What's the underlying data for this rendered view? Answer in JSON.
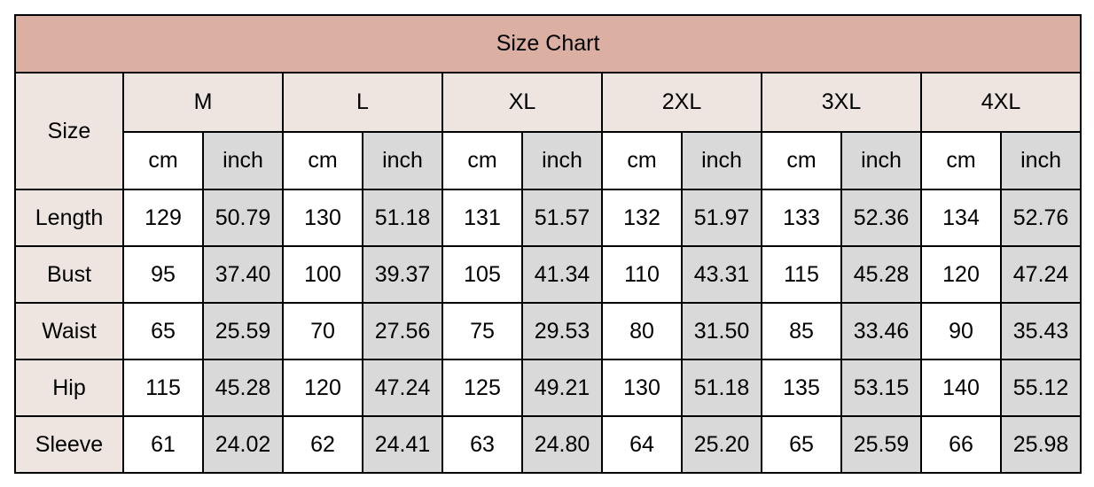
{
  "title": "Size Chart",
  "size_label": "Size",
  "unit_labels": {
    "cm": "cm",
    "inch": "inch"
  },
  "sizes": [
    "M",
    "L",
    "XL",
    "2XL",
    "3XL",
    "4XL"
  ],
  "colors": {
    "title_bg": "#dbb0a3",
    "header_bg": "#efe5e0",
    "inch_bg": "#d9d9d9",
    "border": "#000000"
  },
  "rows": [
    {
      "label": "Length",
      "values": [
        [
          "129",
          "50.79"
        ],
        [
          "130",
          "51.18"
        ],
        [
          "131",
          "51.57"
        ],
        [
          "132",
          "51.97"
        ],
        [
          "133",
          "52.36"
        ],
        [
          "134",
          "52.76"
        ]
      ]
    },
    {
      "label": "Bust",
      "values": [
        [
          "95",
          "37.40"
        ],
        [
          "100",
          "39.37"
        ],
        [
          "105",
          "41.34"
        ],
        [
          "110",
          "43.31"
        ],
        [
          "115",
          "45.28"
        ],
        [
          "120",
          "47.24"
        ]
      ]
    },
    {
      "label": "Waist",
      "values": [
        [
          "65",
          "25.59"
        ],
        [
          "70",
          "27.56"
        ],
        [
          "75",
          "29.53"
        ],
        [
          "80",
          "31.50"
        ],
        [
          "85",
          "33.46"
        ],
        [
          "90",
          "35.43"
        ]
      ]
    },
    {
      "label": "Hip",
      "values": [
        [
          "115",
          "45.28"
        ],
        [
          "120",
          "47.24"
        ],
        [
          "125",
          "49.21"
        ],
        [
          "130",
          "51.18"
        ],
        [
          "135",
          "53.15"
        ],
        [
          "140",
          "55.12"
        ]
      ]
    },
    {
      "label": "Sleeve",
      "values": [
        [
          "61",
          "24.02"
        ],
        [
          "62",
          "24.41"
        ],
        [
          "63",
          "24.80"
        ],
        [
          "64",
          "25.20"
        ],
        [
          "65",
          "25.59"
        ],
        [
          "66",
          "25.98"
        ]
      ]
    }
  ]
}
